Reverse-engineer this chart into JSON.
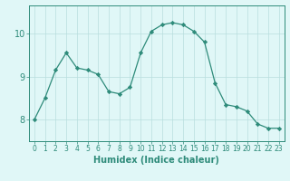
{
  "x": [
    0,
    1,
    2,
    3,
    4,
    5,
    6,
    7,
    8,
    9,
    10,
    11,
    12,
    13,
    14,
    15,
    16,
    17,
    18,
    19,
    20,
    21,
    22,
    23
  ],
  "y": [
    8.0,
    8.5,
    9.15,
    9.55,
    9.2,
    9.15,
    9.05,
    8.65,
    8.6,
    8.75,
    9.55,
    10.05,
    10.2,
    10.25,
    10.2,
    10.05,
    9.8,
    8.85,
    8.35,
    8.3,
    8.2,
    7.9,
    7.8,
    7.8
  ],
  "line_color": "#2e8b7a",
  "marker": "D",
  "marker_size": 2.2,
  "bg_color": "#e0f7f7",
  "grid_color": "#b8dede",
  "axis_color": "#2e8b7a",
  "xlabel": "Humidex (Indice chaleur)",
  "xlim": [
    -0.5,
    23.5
  ],
  "ylim": [
    7.5,
    10.65
  ],
  "yticks": [
    8,
    9,
    10
  ],
  "xticks": [
    0,
    1,
    2,
    3,
    4,
    5,
    6,
    7,
    8,
    9,
    10,
    11,
    12,
    13,
    14,
    15,
    16,
    17,
    18,
    19,
    20,
    21,
    22,
    23
  ],
  "tick_fontsize": 5.5,
  "label_fontsize": 7.0,
  "ytick_fontsize": 7.0
}
